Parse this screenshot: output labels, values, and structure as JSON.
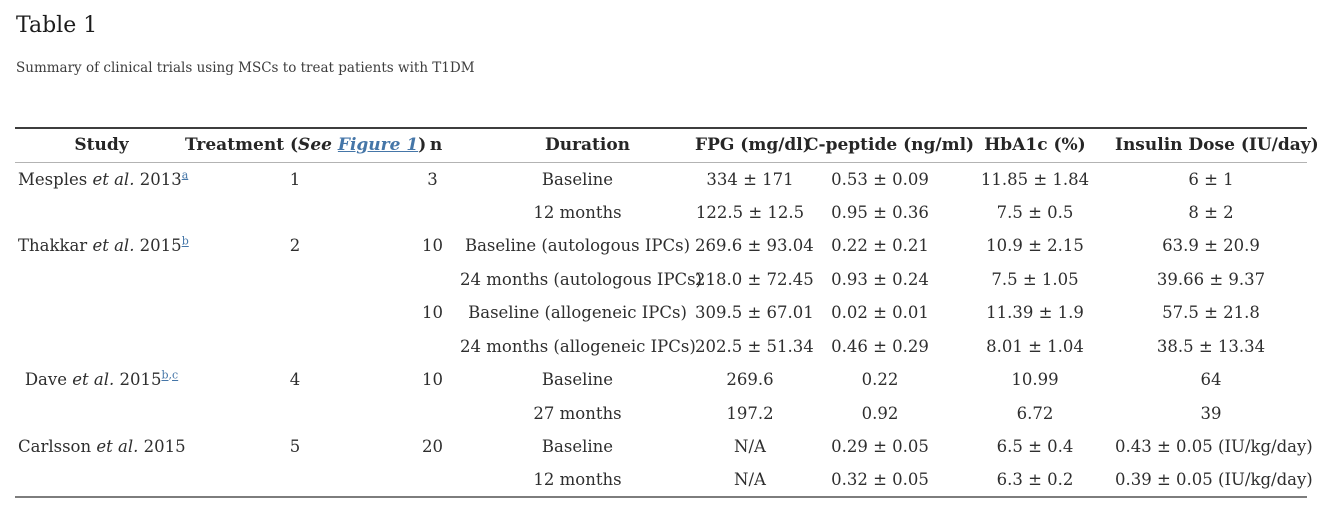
{
  "page": {
    "title": "Table 1",
    "caption": "Summary of clinical trials using MSCs to treat patients with T1DM"
  },
  "colors": {
    "link": "#4576a8",
    "text": "#2e2e2e"
  },
  "table": {
    "headers": {
      "study": "Study",
      "treatment_prefix": "Treatment (",
      "treatment_see": "See",
      "treatment_link": "Figure 1",
      "treatment_suffix": ")",
      "n": "n",
      "duration": "Duration",
      "fpg": "FPG (mg/dl)",
      "cpeptide": "C-peptide (ng/ml)",
      "hba1c": "HbA1c (%)",
      "insulin": "Insulin Dose (IU/day)"
    },
    "rows": [
      {
        "study": {
          "name": "Mesples ",
          "etal": "et al.",
          "year": " 2013",
          "sups": [
            "a"
          ]
        },
        "treatment": "1",
        "n": "3",
        "duration": "Baseline",
        "fpg": "334 ± 171",
        "cpeptide": "0.53 ± 0.09",
        "hba1c": "11.85 ± 1.84",
        "insulin": "6 ± 1"
      },
      {
        "study": null,
        "treatment": "",
        "n": "",
        "duration": "12 months",
        "fpg": "122.5 ± 12.5",
        "cpeptide": "0.95 ± 0.36",
        "hba1c": "7.5 ± 0.5",
        "insulin": "8 ± 2"
      },
      {
        "study": {
          "name": "Thakkar ",
          "etal": "et al.",
          "year": " 2015",
          "sups": [
            "b"
          ]
        },
        "treatment": "2",
        "n": "10",
        "duration": "Baseline (autologous IPCs)",
        "fpg": "269.6 ± 93.04",
        "cpeptide": "0.22 ± 0.21",
        "hba1c": "10.9 ± 2.15",
        "insulin": "63.9 ± 20.9"
      },
      {
        "study": null,
        "treatment": "",
        "n": "",
        "duration": "24 months (autologous IPCs)",
        "fpg": "218.0 ± 72.45",
        "cpeptide": "0.93 ± 0.24",
        "hba1c": "7.5 ± 1.05",
        "insulin": "39.66 ± 9.37"
      },
      {
        "study": null,
        "treatment": "",
        "n": "10",
        "duration": "Baseline (allogeneic IPCs)",
        "fpg": "309.5 ± 67.01",
        "cpeptide": "0.02 ± 0.01",
        "hba1c": "11.39 ± 1.9",
        "insulin": "57.5 ± 21.8"
      },
      {
        "study": null,
        "treatment": "",
        "n": "",
        "duration": "24 months (allogeneic IPCs)",
        "fpg": "202.5 ± 51.34",
        "cpeptide": "0.46 ± 0.29",
        "hba1c": "8.01 ± 1.04",
        "insulin": "38.5 ± 13.34"
      },
      {
        "study": {
          "name": "Dave ",
          "etal": "et al.",
          "year": " 2015",
          "sups": [
            "b",
            "c"
          ]
        },
        "treatment": "4",
        "n": "10",
        "duration": "Baseline",
        "fpg": "269.6",
        "cpeptide": "0.22",
        "hba1c": "10.99",
        "insulin": "64"
      },
      {
        "study": null,
        "treatment": "",
        "n": "",
        "duration": "27 months",
        "fpg": "197.2",
        "cpeptide": "0.92",
        "hba1c": "6.72",
        "insulin": "39"
      },
      {
        "study": {
          "name": "Carlsson ",
          "etal": "et al.",
          "year": " 2015",
          "sups": []
        },
        "treatment": "5",
        "n": "20",
        "duration": "Baseline",
        "fpg": "N/A",
        "cpeptide": "0.29 ± 0.05",
        "hba1c": "6.5 ± 0.4",
        "insulin": "0.43 ± 0.05 (IU/kg/day)"
      },
      {
        "study": null,
        "treatment": "",
        "n": "",
        "duration": "12 months",
        "fpg": "N/A",
        "cpeptide": "0.32 ± 0.05",
        "hba1c": "6.3 ± 0.2",
        "insulin": "0.39 ± 0.05 (IU/kg/day)"
      }
    ]
  }
}
